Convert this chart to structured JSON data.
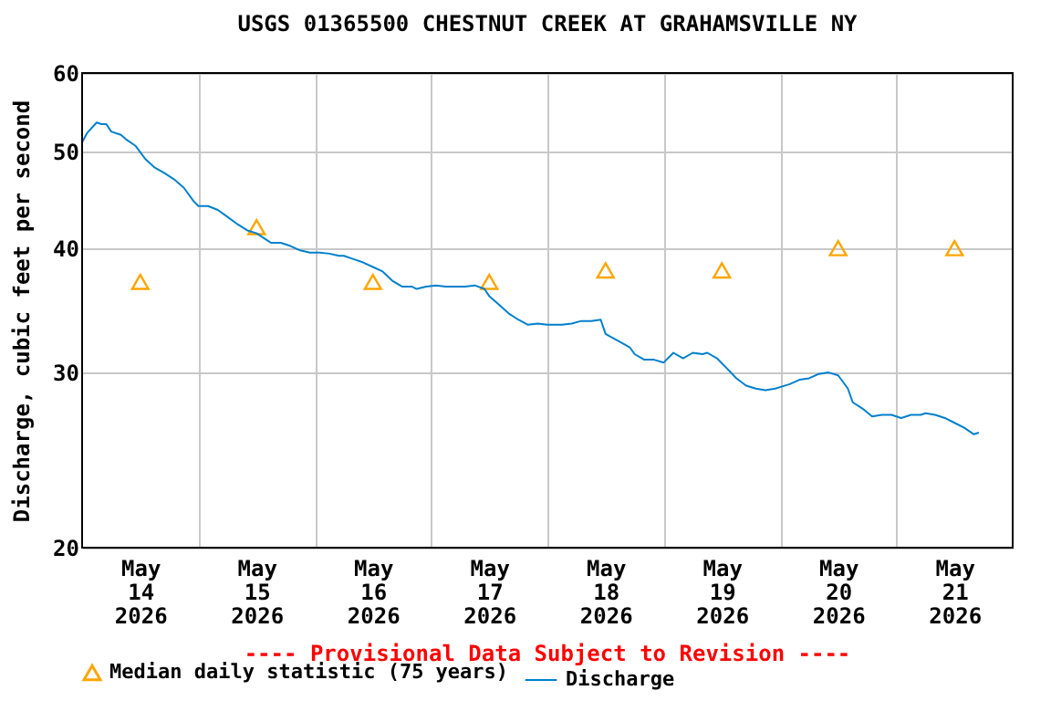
{
  "chart_data": {
    "type": "line",
    "title": "USGS 01365500 CHESTNUT CREEK AT GRAHAMSVILLE NY",
    "ylabel": "Discharge, cubic feet per second",
    "annotations": [
      "---- Provisional Data Subject to Revision ----"
    ],
    "log": "y",
    "ylim": [
      20,
      60
    ],
    "yticks": [
      20,
      30,
      40,
      50,
      60
    ],
    "xlim": [
      "2026-05-14T00:00",
      "2026-05-22T00:00"
    ],
    "xticks": [
      {
        "value": "2026-05-14T12:00",
        "label": "May 14 2026"
      },
      {
        "value": "2026-05-15T00:00",
        "label": null
      },
      {
        "value": "2026-05-15T12:00",
        "label": "May 15 2026"
      },
      {
        "value": "2026-05-16T00:00",
        "label": null
      },
      {
        "value": "2026-05-16T12:00",
        "label": "May 16 2026"
      },
      {
        "value": "2026-05-17T00:00",
        "label": null
      },
      {
        "value": "2026-05-17T12:00",
        "label": "May 17 2026"
      },
      {
        "value": "2026-05-18T00:00",
        "label": null
      },
      {
        "value": "2026-05-18T12:00",
        "label": "May 18 2026"
      },
      {
        "value": "2026-05-19T00:00",
        "label": null
      },
      {
        "value": "2026-05-19T12:00",
        "label": "May 19 2026"
      },
      {
        "value": "2026-05-20T00:00",
        "label": null
      },
      {
        "value": "2026-05-20T12:00",
        "label": "May 20 2026"
      },
      {
        "value": "2026-05-21T00:00",
        "label": null
      },
      {
        "value": "2026-05-21T12:00",
        "label": "May 21 2026"
      }
    ],
    "grid": true,
    "legend": "bottom left",
    "series": [
      {
        "name": "Median daily statistic (75 years)",
        "type": "scatter",
        "marker": "triangle",
        "color": "#ffa500",
        "x": [
          "2026-05-14T12:00",
          "2026-05-15T12:00",
          "2026-05-16T12:00",
          "2026-05-17T12:00",
          "2026-05-18T12:00",
          "2026-05-19T12:00",
          "2026-05-20T12:00",
          "2026-05-21T12:00"
        ],
        "values": [
          37,
          42,
          37,
          37,
          38,
          38,
          40,
          40
        ]
      },
      {
        "name": "Discharge",
        "marker": "none",
        "line_style": "solid",
        "color": "#0080cc",
        "x": [
          "2026-05-14T00:00",
          "2026-05-14T01:00",
          "2026-05-14T03:00",
          "2026-05-14T04:00",
          "2026-05-14T05:00",
          "2026-05-14T06:00",
          "2026-05-14T08:00",
          "2026-05-14T09:00",
          "2026-05-14T11:00",
          "2026-05-14T13:00",
          "2026-05-14T15:00",
          "2026-05-14T17:00",
          "2026-05-14T19:00",
          "2026-05-14T21:00",
          "2026-05-14T23:00",
          "2026-05-15T00:00",
          "2026-05-15T02:00",
          "2026-05-15T04:00",
          "2026-05-15T06:00",
          "2026-05-15T08:00",
          "2026-05-15T10:00",
          "2026-05-15T12:00",
          "2026-05-15T14:00",
          "2026-05-15T15:00",
          "2026-05-15T17:00",
          "2026-05-15T19:00",
          "2026-05-15T21:00",
          "2026-05-15T23:00",
          "2026-05-16T01:00",
          "2026-05-16T03:00",
          "2026-05-16T05:00",
          "2026-05-16T06:00",
          "2026-05-16T08:00",
          "2026-05-16T10:00",
          "2026-05-16T12:00",
          "2026-05-16T14:00",
          "2026-05-16T16:00",
          "2026-05-16T18:00",
          "2026-05-16T20:00",
          "2026-05-16T21:00",
          "2026-05-16T23:00",
          "2026-05-17T01:00",
          "2026-05-17T03:00",
          "2026-05-17T05:00",
          "2026-05-17T07:00",
          "2026-05-17T09:00",
          "2026-05-17T11:00",
          "2026-05-17T12:00",
          "2026-05-17T14:00",
          "2026-05-17T16:00",
          "2026-05-17T18:00",
          "2026-05-17T20:00",
          "2026-05-17T22:00",
          "2026-05-18T00:00",
          "2026-05-18T02:00",
          "2026-05-18T03:00",
          "2026-05-18T05:00",
          "2026-05-18T07:00",
          "2026-05-18T09:00",
          "2026-05-18T11:00",
          "2026-05-18T12:00",
          "2026-05-18T15:00",
          "2026-05-18T17:00",
          "2026-05-18T18:00",
          "2026-05-18T20:00",
          "2026-05-18T22:00",
          "2026-05-19T00:00",
          "2026-05-19T02:00",
          "2026-05-19T04:00",
          "2026-05-19T06:00",
          "2026-05-19T08:00",
          "2026-05-19T09:00",
          "2026-05-19T11:00",
          "2026-05-19T13:00",
          "2026-05-19T15:00",
          "2026-05-19T17:00",
          "2026-05-19T19:00",
          "2026-05-19T21:00",
          "2026-05-19T23:00",
          "2026-05-20T00:00",
          "2026-05-20T02:00",
          "2026-05-20T04:00",
          "2026-05-20T06:00",
          "2026-05-20T08:00",
          "2026-05-20T10:00",
          "2026-05-20T12:00",
          "2026-05-20T14:00",
          "2026-05-20T15:00",
          "2026-05-20T17:00",
          "2026-05-20T19:00",
          "2026-05-20T21:00",
          "2026-05-20T23:00",
          "2026-05-21T01:00",
          "2026-05-21T03:00",
          "2026-05-21T05:00",
          "2026-05-21T06:00",
          "2026-05-21T08:00",
          "2026-05-21T10:00",
          "2026-05-21T12:00",
          "2026-05-21T14:00",
          "2026-05-21T16:00",
          "2026-05-21T17:00"
        ],
        "values": [
          51.1,
          52.2,
          53.5,
          53.3,
          53.3,
          52.4,
          52.0,
          51.5,
          50.7,
          49.2,
          48.2,
          47.6,
          46.9,
          46.0,
          44.6,
          44.1,
          44.1,
          43.7,
          43.0,
          42.3,
          41.7,
          41.4,
          40.8,
          40.5,
          40.5,
          40.2,
          39.8,
          39.6,
          39.6,
          39.5,
          39.3,
          39.3,
          39.0,
          38.7,
          38.3,
          37.9,
          37.1,
          36.6,
          36.6,
          36.4,
          36.6,
          36.7,
          36.6,
          36.6,
          36.6,
          36.7,
          36.4,
          35.8,
          35.1,
          34.4,
          33.9,
          33.5,
          33.6,
          33.5,
          33.5,
          33.5,
          33.6,
          33.8,
          33.8,
          33.9,
          32.8,
          32.2,
          31.8,
          31.3,
          30.9,
          30.9,
          30.7,
          31.4,
          31.0,
          31.4,
          31.3,
          31.4,
          31.0,
          30.3,
          29.6,
          29.1,
          28.9,
          28.8,
          28.9,
          29.0,
          29.2,
          29.5,
          29.6,
          29.9,
          30.0,
          29.8,
          28.9,
          28.0,
          27.6,
          27.1,
          27.2,
          27.2,
          27.0,
          27.2,
          27.2,
          27.3,
          27.2,
          27.0,
          26.7,
          26.4,
          26.0,
          26.1
        ]
      }
    ]
  }
}
